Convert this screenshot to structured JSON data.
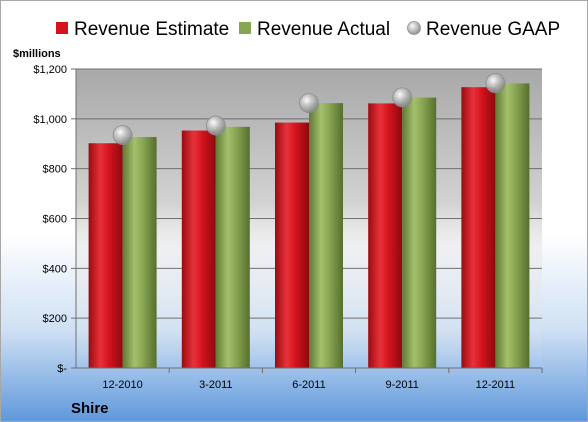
{
  "chart_data": {
    "type": "bar",
    "company": "Shire",
    "ylabel": "$millions",
    "categories": [
      "12-2010",
      "3-2011",
      "6-2011",
      "9-2011",
      "12-2011"
    ],
    "series": [
      {
        "name": "Revenue Estimate",
        "kind": "bar",
        "color": "#d4131d",
        "values": [
          902,
          953,
          985,
          1062,
          1127
        ]
      },
      {
        "name": "Revenue Actual",
        "kind": "bar",
        "color": "#88a553",
        "values": [
          927,
          968,
          1063,
          1085,
          1142
        ]
      },
      {
        "name": "Revenue GAAP",
        "kind": "marker",
        "color": "#b4b4b4",
        "values": [
          935,
          973,
          1063,
          1086,
          1143
        ]
      }
    ],
    "ylim": [
      0,
      1200
    ],
    "yticks": [
      0,
      200,
      400,
      600,
      800,
      1000,
      1200
    ],
    "ytick_labels": [
      "$-",
      "$200",
      "$400",
      "$600",
      "$800",
      "$1,000",
      "$1,200"
    ],
    "grid": true,
    "legend_position": "top"
  }
}
